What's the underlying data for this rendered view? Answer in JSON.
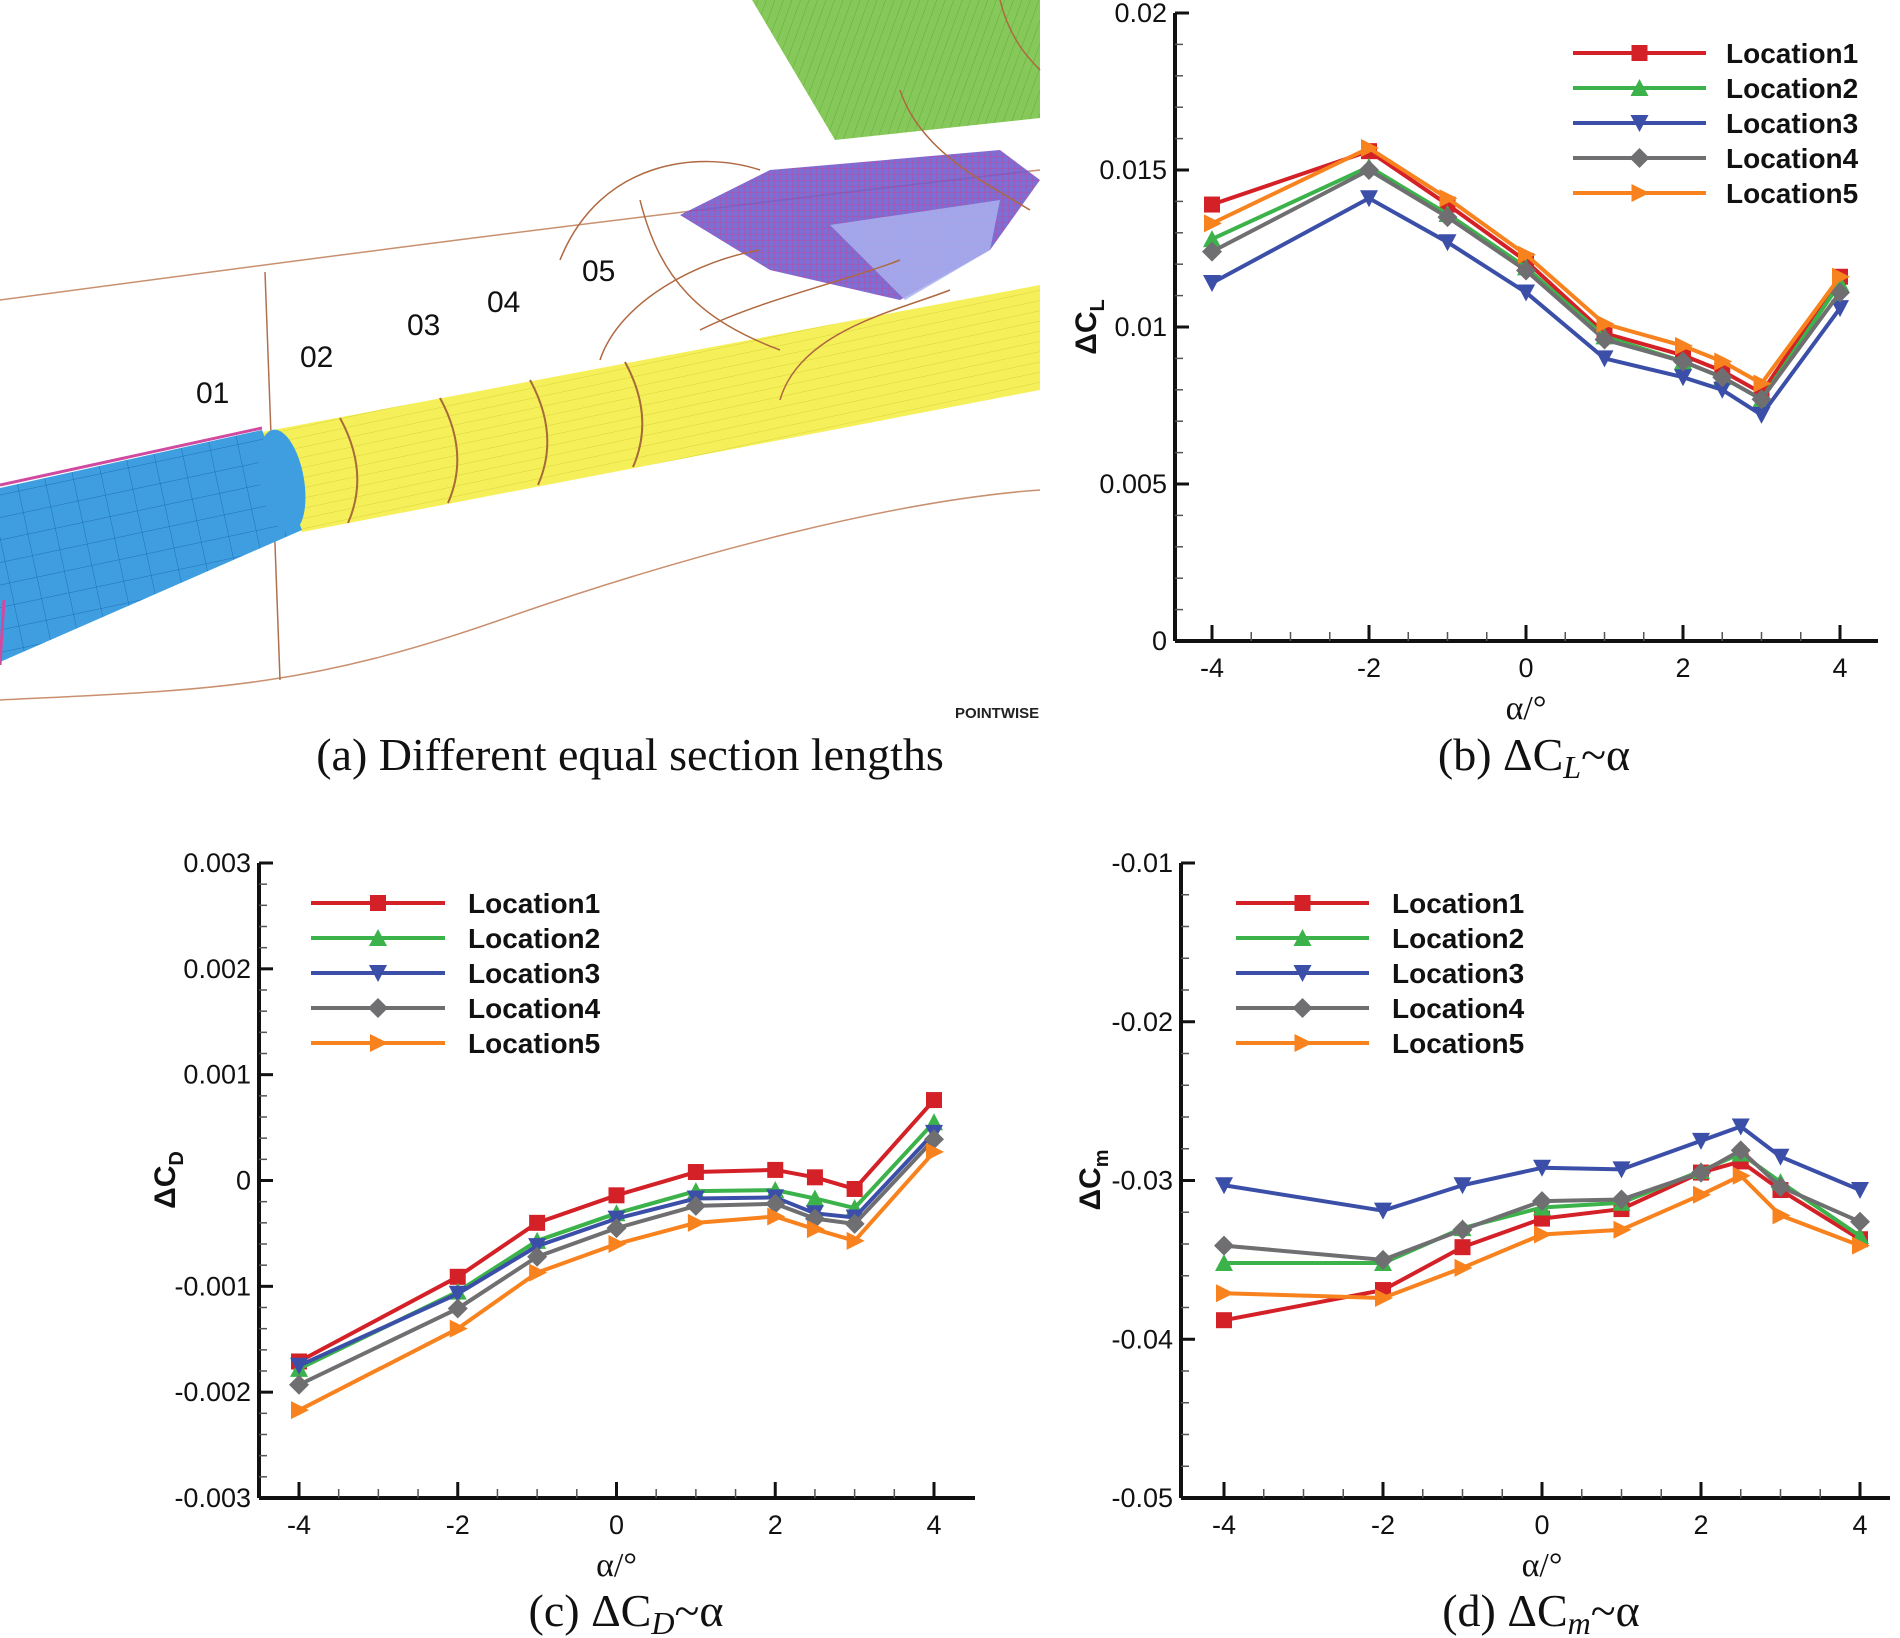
{
  "panel_a": {
    "caption": "(a) Different equal section lengths",
    "section_labels": [
      "01",
      "02",
      "03",
      "04",
      "05"
    ],
    "logo": "POINTWISE"
  },
  "colors": {
    "Location1": "#d42027",
    "Location2": "#3cb34a",
    "Location3": "#3b4fa8",
    "Location4": "#6f6f71",
    "Location5": "#f7821e"
  },
  "chart_data": [
    {
      "id": "b",
      "type": "line",
      "caption": "(b) ΔC",
      "caption_sub": "L",
      "caption_tail": "~α",
      "xlabel": "α/°",
      "ylabel": "ΔC",
      "ylabel_sub": "L",
      "xlim": [
        -4.4,
        4.5
      ],
      "ylim": [
        0,
        0.02
      ],
      "xticks": [
        "-4",
        "-2",
        "0",
        "2",
        "4"
      ],
      "yticks": [
        "0",
        "0.005",
        "0.01",
        "0.015",
        "0.02"
      ],
      "legend": "top-right",
      "x": [
        -4,
        -2,
        -1,
        0,
        1,
        2,
        2.5,
        3,
        4
      ],
      "series": [
        {
          "name": "Location1",
          "marker": "square",
          "values": [
            0.0139,
            0.0156,
            0.0139,
            0.0121,
            0.0098,
            0.0091,
            0.0086,
            0.0079,
            0.0116
          ]
        },
        {
          "name": "Location2",
          "marker": "triangle-up",
          "values": [
            0.0128,
            0.0151,
            0.0136,
            0.0119,
            0.0097,
            0.0089,
            0.0084,
            0.0077,
            0.0114
          ]
        },
        {
          "name": "Location3",
          "marker": "triangle-down",
          "values": [
            0.0114,
            0.0141,
            0.0127,
            0.0111,
            0.009,
            0.0084,
            0.008,
            0.0072,
            0.0106
          ]
        },
        {
          "name": "Location4",
          "marker": "diamond",
          "values": [
            0.0124,
            0.015,
            0.0135,
            0.0118,
            0.0096,
            0.0089,
            0.0084,
            0.0077,
            0.0111
          ]
        },
        {
          "name": "Location5",
          "marker": "triangle-right",
          "values": [
            0.0133,
            0.0157,
            0.0141,
            0.0123,
            0.0101,
            0.0094,
            0.0089,
            0.0082,
            0.0116
          ]
        }
      ]
    },
    {
      "id": "c",
      "type": "line",
      "caption": "(c) ΔC",
      "caption_sub": "D",
      "caption_tail": "~α",
      "xlabel": "α/°",
      "ylabel": "ΔC",
      "ylabel_sub": "D",
      "xlim": [
        -4.5,
        4.5
      ],
      "ylim": [
        -0.003,
        0.003
      ],
      "xticks": [
        "-4",
        "-2",
        "0",
        "2",
        "4"
      ],
      "yticks": [
        "-0.003",
        "-0.002",
        "-0.001",
        "0",
        "0.001",
        "0.002",
        "0.003"
      ],
      "legend": "top-left",
      "x": [
        -4,
        -2,
        -1,
        0,
        1,
        2,
        2.5,
        3,
        4
      ],
      "series": [
        {
          "name": "Location1",
          "marker": "square",
          "values": [
            -0.00171,
            -0.00091,
            -0.0004,
            -0.00014,
            8e-05,
            0.0001,
            3e-05,
            -8e-05,
            0.00076
          ]
        },
        {
          "name": "Location2",
          "marker": "triangle-up",
          "values": [
            -0.00178,
            -0.00105,
            -0.00057,
            -0.00031,
            -0.0001,
            -9e-05,
            -0.00017,
            -0.00026,
            0.00055
          ]
        },
        {
          "name": "Location3",
          "marker": "triangle-down",
          "values": [
            -0.00175,
            -0.00107,
            -0.00062,
            -0.00036,
            -0.00017,
            -0.00016,
            -0.00031,
            -0.00035,
            0.00045
          ]
        },
        {
          "name": "Location4",
          "marker": "diamond",
          "values": [
            -0.00193,
            -0.00121,
            -0.00072,
            -0.00045,
            -0.00024,
            -0.00022,
            -0.00036,
            -0.00041,
            0.00039
          ]
        },
        {
          "name": "Location5",
          "marker": "triangle-right",
          "values": [
            -0.00217,
            -0.0014,
            -0.00087,
            -0.0006,
            -0.0004,
            -0.00034,
            -0.00046,
            -0.00057,
            0.00027
          ]
        }
      ]
    },
    {
      "id": "d",
      "type": "line",
      "caption": "(d) ΔC",
      "caption_sub": "m",
      "caption_tail": "~α",
      "xlabel": "α/°",
      "ylabel": "ΔC",
      "ylabel_sub": "m",
      "xlim": [
        -4.5,
        4.5
      ],
      "ylim": [
        -0.05,
        -0.01
      ],
      "xticks": [
        "-4",
        "-2",
        "0",
        "2",
        "4"
      ],
      "yticks": [
        "-0.05",
        "-0.04",
        "-0.03",
        "-0.02",
        "-0.01"
      ],
      "legend": "top-left",
      "x": [
        -4,
        -2,
        -1,
        0,
        1,
        2,
        2.5,
        3,
        4
      ],
      "series": [
        {
          "name": "Location1",
          "marker": "square",
          "values": [
            -0.0388,
            -0.0369,
            -0.0342,
            -0.0324,
            -0.0318,
            -0.0295,
            -0.0288,
            -0.0306,
            -0.0337
          ]
        },
        {
          "name": "Location2",
          "marker": "triangle-up",
          "values": [
            -0.0352,
            -0.0352,
            -0.033,
            -0.0317,
            -0.0314,
            -0.0294,
            -0.0283,
            -0.0301,
            -0.0335
          ]
        },
        {
          "name": "Location3",
          "marker": "triangle-down",
          "values": [
            -0.0303,
            -0.0319,
            -0.0303,
            -0.0292,
            -0.0293,
            -0.0275,
            -0.0266,
            -0.0285,
            -0.0306
          ]
        },
        {
          "name": "Location4",
          "marker": "diamond",
          "values": [
            -0.0341,
            -0.035,
            -0.0331,
            -0.0313,
            -0.0312,
            -0.0295,
            -0.0281,
            -0.0304,
            -0.0326
          ]
        },
        {
          "name": "Location5",
          "marker": "triangle-right",
          "values": [
            -0.0371,
            -0.0374,
            -0.0355,
            -0.0334,
            -0.0331,
            -0.0309,
            -0.0297,
            -0.0322,
            -0.0341
          ]
        }
      ]
    }
  ]
}
